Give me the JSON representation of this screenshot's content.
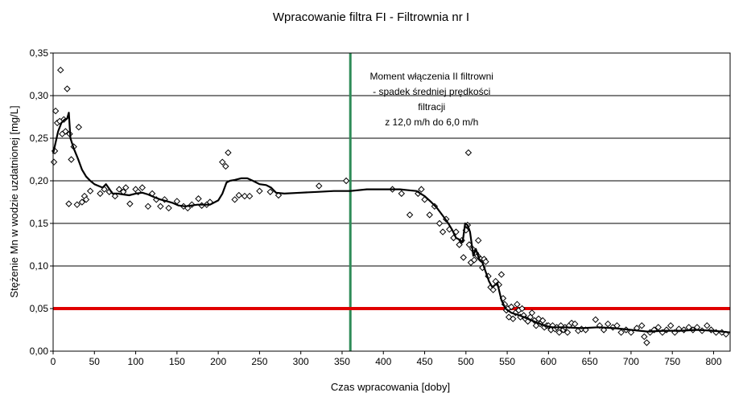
{
  "chart_data": {
    "type": "scatter",
    "title": "Wpracowanie filtra  FI - Filtrownia nr I",
    "xlabel": "Czas wpracowania [doby]",
    "ylabel": "Stężenie Mn w wodzie uzdatnionej [mg/L]",
    "xlim": [
      0,
      820
    ],
    "ylim": [
      0,
      0.35
    ],
    "xticks": [
      0,
      50,
      100,
      150,
      200,
      250,
      300,
      350,
      400,
      450,
      500,
      550,
      600,
      650,
      700,
      750,
      800
    ],
    "xtick_labels": [
      "0",
      "50",
      "100",
      "150",
      "200",
      "250",
      "300",
      "350",
      "400",
      "450",
      "500",
      "550",
      "600",
      "650",
      "700",
      "750",
      "800"
    ],
    "yticks": [
      0,
      0.05,
      0.1,
      0.15,
      0.2,
      0.25,
      0.3,
      0.35
    ],
    "ytick_labels": [
      "0,00",
      "0,05",
      "0,10",
      "0,15",
      "0,20",
      "0,25",
      "0,30",
      "0,35"
    ],
    "grid": "horizontal",
    "annotation": {
      "lines": [
        "Moment włączenia II filtrowni",
        "- spadek średniej prędkości",
        "filtracji",
        "z 12,0 m/h do 6,0 m/h"
      ],
      "x": 360,
      "y": 0.34
    },
    "reference_lines": [
      {
        "orientation": "vertical",
        "x": 360,
        "color": "#2e8b57"
      },
      {
        "orientation": "horizontal",
        "y": 0.05,
        "color": "#e00000"
      }
    ],
    "series": [
      {
        "style": "markers",
        "marker": "diamond",
        "color": "#000000",
        "points": [
          [
            1,
            0.222
          ],
          [
            2,
            0.235
          ],
          [
            3,
            0.282
          ],
          [
            5,
            0.268
          ],
          [
            8,
            0.27
          ],
          [
            9,
            0.33
          ],
          [
            11,
            0.255
          ],
          [
            13,
            0.272
          ],
          [
            15,
            0.258
          ],
          [
            17,
            0.308
          ],
          [
            19,
            0.173
          ],
          [
            20,
            0.255
          ],
          [
            22,
            0.225
          ],
          [
            25,
            0.24
          ],
          [
            29,
            0.172
          ],
          [
            31,
            0.263
          ],
          [
            35,
            0.175
          ],
          [
            38,
            0.182
          ],
          [
            40,
            0.178
          ],
          [
            45,
            0.188
          ],
          [
            57,
            0.185
          ],
          [
            62,
            0.19
          ],
          [
            68,
            0.187
          ],
          [
            75,
            0.182
          ],
          [
            80,
            0.19
          ],
          [
            85,
            0.187
          ],
          [
            88,
            0.192
          ],
          [
            93,
            0.173
          ],
          [
            100,
            0.19
          ],
          [
            103,
            0.187
          ],
          [
            108,
            0.192
          ],
          [
            115,
            0.17
          ],
          [
            120,
            0.185
          ],
          [
            125,
            0.178
          ],
          [
            130,
            0.17
          ],
          [
            135,
            0.178
          ],
          [
            140,
            0.168
          ],
          [
            150,
            0.176
          ],
          [
            158,
            0.17
          ],
          [
            163,
            0.168
          ],
          [
            168,
            0.172
          ],
          [
            176,
            0.179
          ],
          [
            180,
            0.171
          ],
          [
            186,
            0.172
          ],
          [
            190,
            0.175
          ],
          [
            205,
            0.222
          ],
          [
            209,
            0.217
          ],
          [
            212,
            0.233
          ],
          [
            220,
            0.178
          ],
          [
            225,
            0.183
          ],
          [
            232,
            0.182
          ],
          [
            238,
            0.182
          ],
          [
            250,
            0.188
          ],
          [
            263,
            0.187
          ],
          [
            273,
            0.183
          ],
          [
            322,
            0.194
          ],
          [
            355,
            0.2
          ],
          [
            411,
            0.19
          ],
          [
            422,
            0.185
          ],
          [
            432,
            0.16
          ],
          [
            442,
            0.185
          ],
          [
            446,
            0.19
          ],
          [
            450,
            0.178
          ],
          [
            456,
            0.16
          ],
          [
            462,
            0.17
          ],
          [
            468,
            0.15
          ],
          [
            472,
            0.14
          ],
          [
            476,
            0.155
          ],
          [
            480,
            0.143
          ],
          [
            485,
            0.133
          ],
          [
            488,
            0.14
          ],
          [
            492,
            0.125
          ],
          [
            495,
            0.13
          ],
          [
            497,
            0.11
          ],
          [
            500,
            0.142
          ],
          [
            502,
            0.148
          ],
          [
            503,
            0.233
          ],
          [
            504,
            0.125
          ],
          [
            506,
            0.104
          ],
          [
            508,
            0.12
          ],
          [
            510,
            0.107
          ],
          [
            512,
            0.115
          ],
          [
            514,
            0.112
          ],
          [
            515,
            0.13
          ],
          [
            518,
            0.108
          ],
          [
            520,
            0.098
          ],
          [
            522,
            0.108
          ],
          [
            524,
            0.105
          ],
          [
            527,
            0.088
          ],
          [
            530,
            0.075
          ],
          [
            533,
            0.072
          ],
          [
            536,
            0.082
          ],
          [
            540,
            0.078
          ],
          [
            543,
            0.09
          ],
          [
            545,
            0.062
          ],
          [
            547,
            0.055
          ],
          [
            549,
            0.048
          ],
          [
            551,
            0.05
          ],
          [
            552,
            0.04
          ],
          [
            555,
            0.052
          ],
          [
            557,
            0.038
          ],
          [
            560,
            0.045
          ],
          [
            562,
            0.055
          ],
          [
            564,
            0.048
          ],
          [
            566,
            0.04
          ],
          [
            568,
            0.05
          ],
          [
            570,
            0.042
          ],
          [
            572,
            0.038
          ],
          [
            575,
            0.035
          ],
          [
            578,
            0.04
          ],
          [
            580,
            0.045
          ],
          [
            583,
            0.036
          ],
          [
            585,
            0.03
          ],
          [
            588,
            0.038
          ],
          [
            590,
            0.032
          ],
          [
            593,
            0.036
          ],
          [
            595,
            0.028
          ],
          [
            598,
            0.03
          ],
          [
            600,
            0.03
          ],
          [
            603,
            0.025
          ],
          [
            605,
            0.03
          ],
          [
            608,
            0.026
          ],
          [
            610,
            0.028
          ],
          [
            613,
            0.022
          ],
          [
            615,
            0.03
          ],
          [
            618,
            0.025
          ],
          [
            620,
            0.028
          ],
          [
            623,
            0.022
          ],
          [
            625,
            0.03
          ],
          [
            628,
            0.033
          ],
          [
            632,
            0.032
          ],
          [
            636,
            0.024
          ],
          [
            640,
            0.026
          ],
          [
            645,
            0.025
          ],
          [
            657,
            0.037
          ],
          [
            662,
            0.03
          ],
          [
            667,
            0.025
          ],
          [
            672,
            0.032
          ],
          [
            678,
            0.028
          ],
          [
            683,
            0.03
          ],
          [
            688,
            0.022
          ],
          [
            694,
            0.025
          ],
          [
            700,
            0.022
          ],
          [
            707,
            0.027
          ],
          [
            713,
            0.03
          ],
          [
            716,
            0.017
          ],
          [
            719,
            0.01
          ],
          [
            723,
            0.022
          ],
          [
            728,
            0.025
          ],
          [
            733,
            0.028
          ],
          [
            738,
            0.022
          ],
          [
            743,
            0.025
          ],
          [
            748,
            0.03
          ],
          [
            753,
            0.022
          ],
          [
            758,
            0.026
          ],
          [
            764,
            0.025
          ],
          [
            770,
            0.028
          ],
          [
            775,
            0.025
          ],
          [
            780,
            0.028
          ],
          [
            786,
            0.024
          ],
          [
            792,
            0.03
          ],
          [
            797,
            0.025
          ],
          [
            803,
            0.022
          ],
          [
            810,
            0.022
          ],
          [
            815,
            0.02
          ]
        ]
      },
      {
        "style": "line",
        "color": "#000000",
        "points": [
          [
            0,
            0.232
          ],
          [
            6,
            0.258
          ],
          [
            10,
            0.268
          ],
          [
            14,
            0.272
          ],
          [
            17,
            0.273
          ],
          [
            19,
            0.28
          ],
          [
            21,
            0.25
          ],
          [
            25,
            0.238
          ],
          [
            30,
            0.226
          ],
          [
            35,
            0.213
          ],
          [
            40,
            0.205
          ],
          [
            45,
            0.2
          ],
          [
            50,
            0.196
          ],
          [
            55,
            0.194
          ],
          [
            60,
            0.192
          ],
          [
            64,
            0.196
          ],
          [
            67,
            0.192
          ],
          [
            72,
            0.185
          ],
          [
            78,
            0.185
          ],
          [
            85,
            0.184
          ],
          [
            92,
            0.183
          ],
          [
            100,
            0.185
          ],
          [
            108,
            0.186
          ],
          [
            115,
            0.184
          ],
          [
            122,
            0.181
          ],
          [
            130,
            0.178
          ],
          [
            138,
            0.176
          ],
          [
            145,
            0.174
          ],
          [
            152,
            0.171
          ],
          [
            160,
            0.17
          ],
          [
            168,
            0.171
          ],
          [
            175,
            0.172
          ],
          [
            182,
            0.172
          ],
          [
            190,
            0.172
          ],
          [
            200,
            0.177
          ],
          [
            205,
            0.185
          ],
          [
            210,
            0.198
          ],
          [
            214,
            0.2
          ],
          [
            220,
            0.201
          ],
          [
            228,
            0.203
          ],
          [
            235,
            0.203
          ],
          [
            242,
            0.2
          ],
          [
            250,
            0.196
          ],
          [
            258,
            0.195
          ],
          [
            264,
            0.192
          ],
          [
            270,
            0.186
          ],
          [
            280,
            0.185
          ],
          [
            300,
            0.186
          ],
          [
            320,
            0.187
          ],
          [
            340,
            0.188
          ],
          [
            360,
            0.188
          ],
          [
            380,
            0.19
          ],
          [
            400,
            0.19
          ],
          [
            420,
            0.19
          ],
          [
            430,
            0.189
          ],
          [
            440,
            0.188
          ],
          [
            450,
            0.182
          ],
          [
            458,
            0.175
          ],
          [
            465,
            0.168
          ],
          [
            472,
            0.159
          ],
          [
            478,
            0.151
          ],
          [
            483,
            0.143
          ],
          [
            488,
            0.133
          ],
          [
            492,
            0.131
          ],
          [
            496,
            0.128
          ],
          [
            499,
            0.15
          ],
          [
            502,
            0.148
          ],
          [
            505,
            0.14
          ],
          [
            509,
            0.112
          ],
          [
            512,
            0.12
          ],
          [
            516,
            0.108
          ],
          [
            520,
            0.104
          ],
          [
            524,
            0.093
          ],
          [
            528,
            0.082
          ],
          [
            532,
            0.075
          ],
          [
            538,
            0.08
          ],
          [
            543,
            0.06
          ],
          [
            548,
            0.05
          ],
          [
            555,
            0.045
          ],
          [
            565,
            0.042
          ],
          [
            575,
            0.038
          ],
          [
            585,
            0.034
          ],
          [
            595,
            0.03
          ],
          [
            605,
            0.028
          ],
          [
            620,
            0.028
          ],
          [
            640,
            0.027
          ],
          [
            660,
            0.028
          ],
          [
            680,
            0.027
          ],
          [
            700,
            0.025
          ],
          [
            720,
            0.023
          ],
          [
            740,
            0.024
          ],
          [
            760,
            0.024
          ],
          [
            780,
            0.025
          ],
          [
            800,
            0.024
          ],
          [
            820,
            0.022
          ]
        ]
      }
    ]
  }
}
